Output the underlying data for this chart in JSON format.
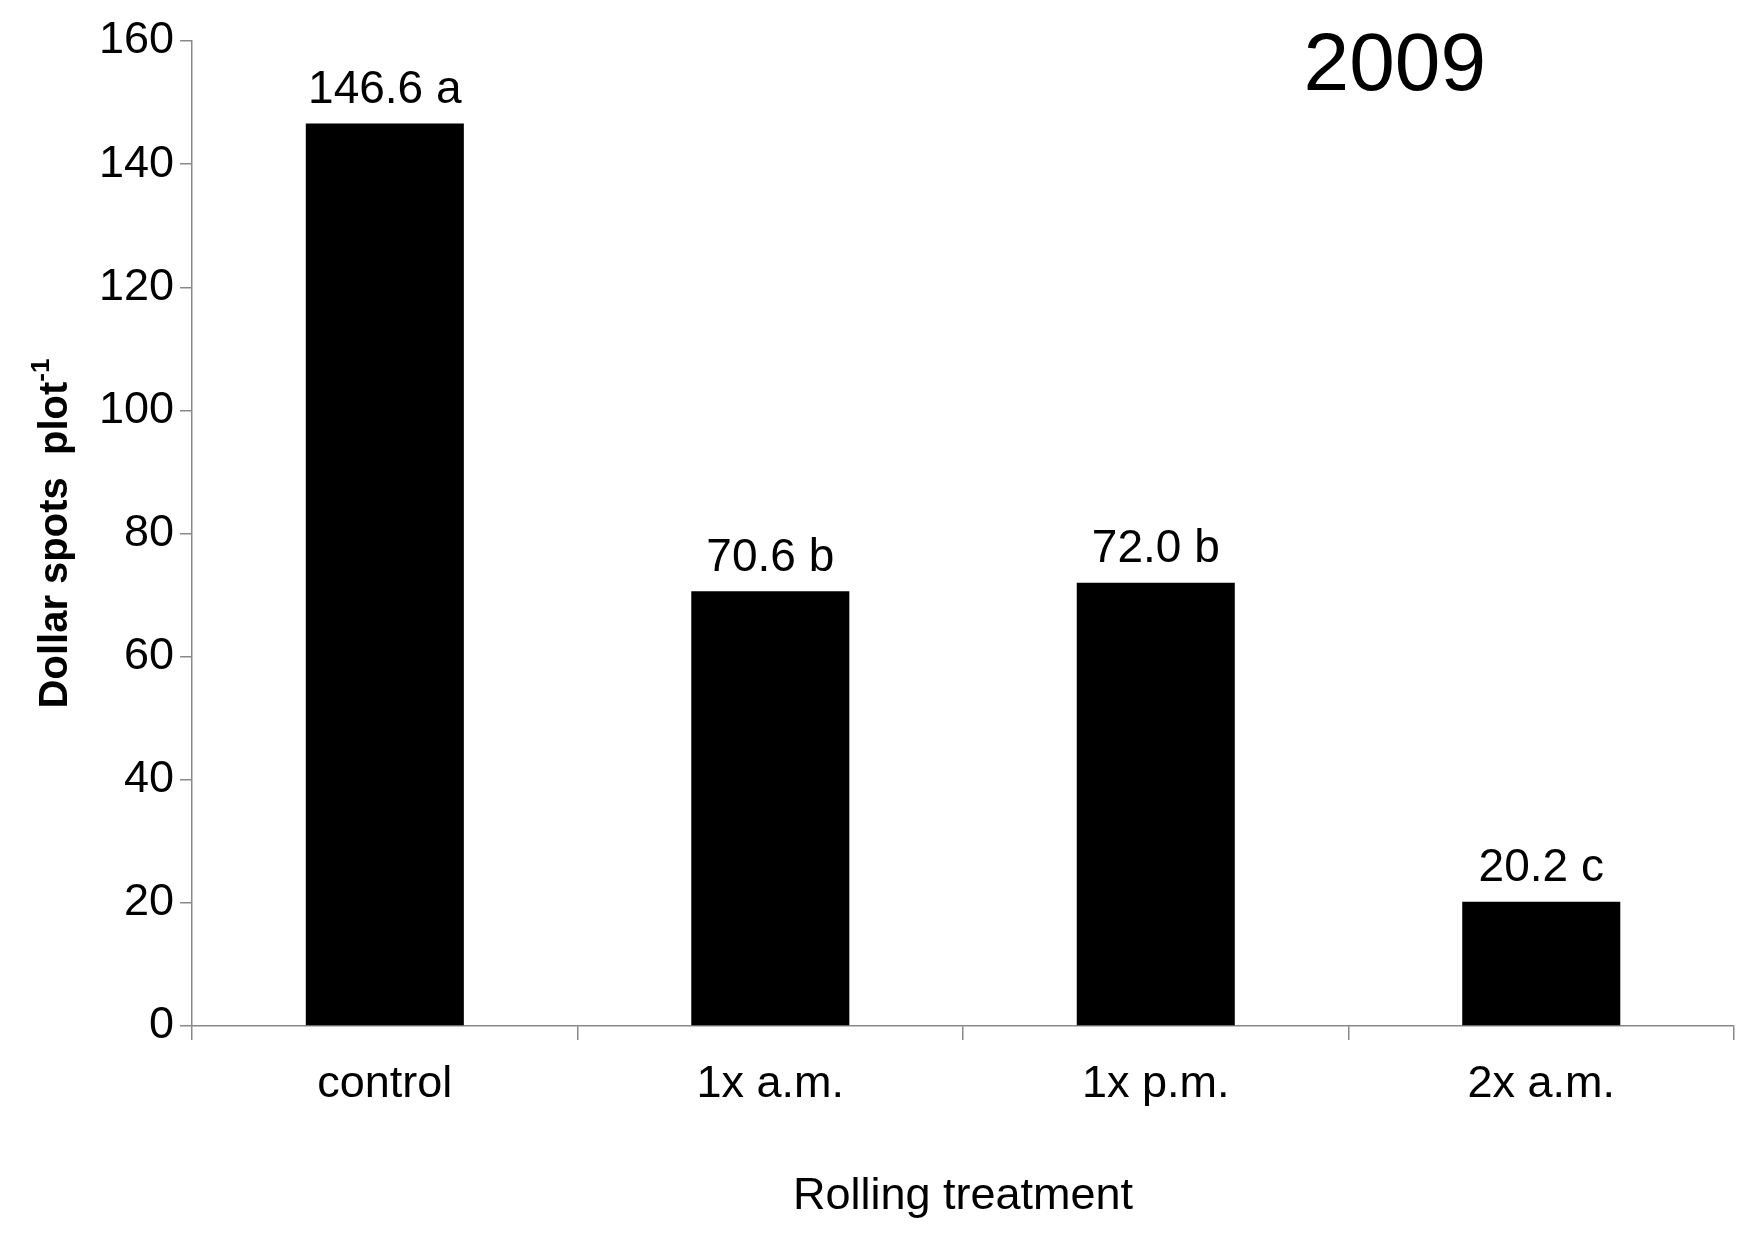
{
  "chart_data": {
    "type": "bar",
    "xlabel": "Rolling treatment",
    "ylabel": "Dollar spots  plot$^{-1}$",
    "categories": [
      "control",
      "1x a.m.",
      "1x p.m.",
      "2x a.m."
    ],
    "values": [
      146.6,
      70.6,
      72.0,
      20.2
    ],
    "color": "#000000",
    "value_labels": [
      "146.6 a",
      "70.6 b",
      "72.0 b",
      "20.2 c"
    ],
    "ylim": [
      0,
      160
    ],
    "yticks": [
      0,
      20,
      40,
      60,
      80,
      100,
      120,
      140,
      160
    ],
    "annotations": [
      "2009"
    ],
    "legend": false
  }
}
